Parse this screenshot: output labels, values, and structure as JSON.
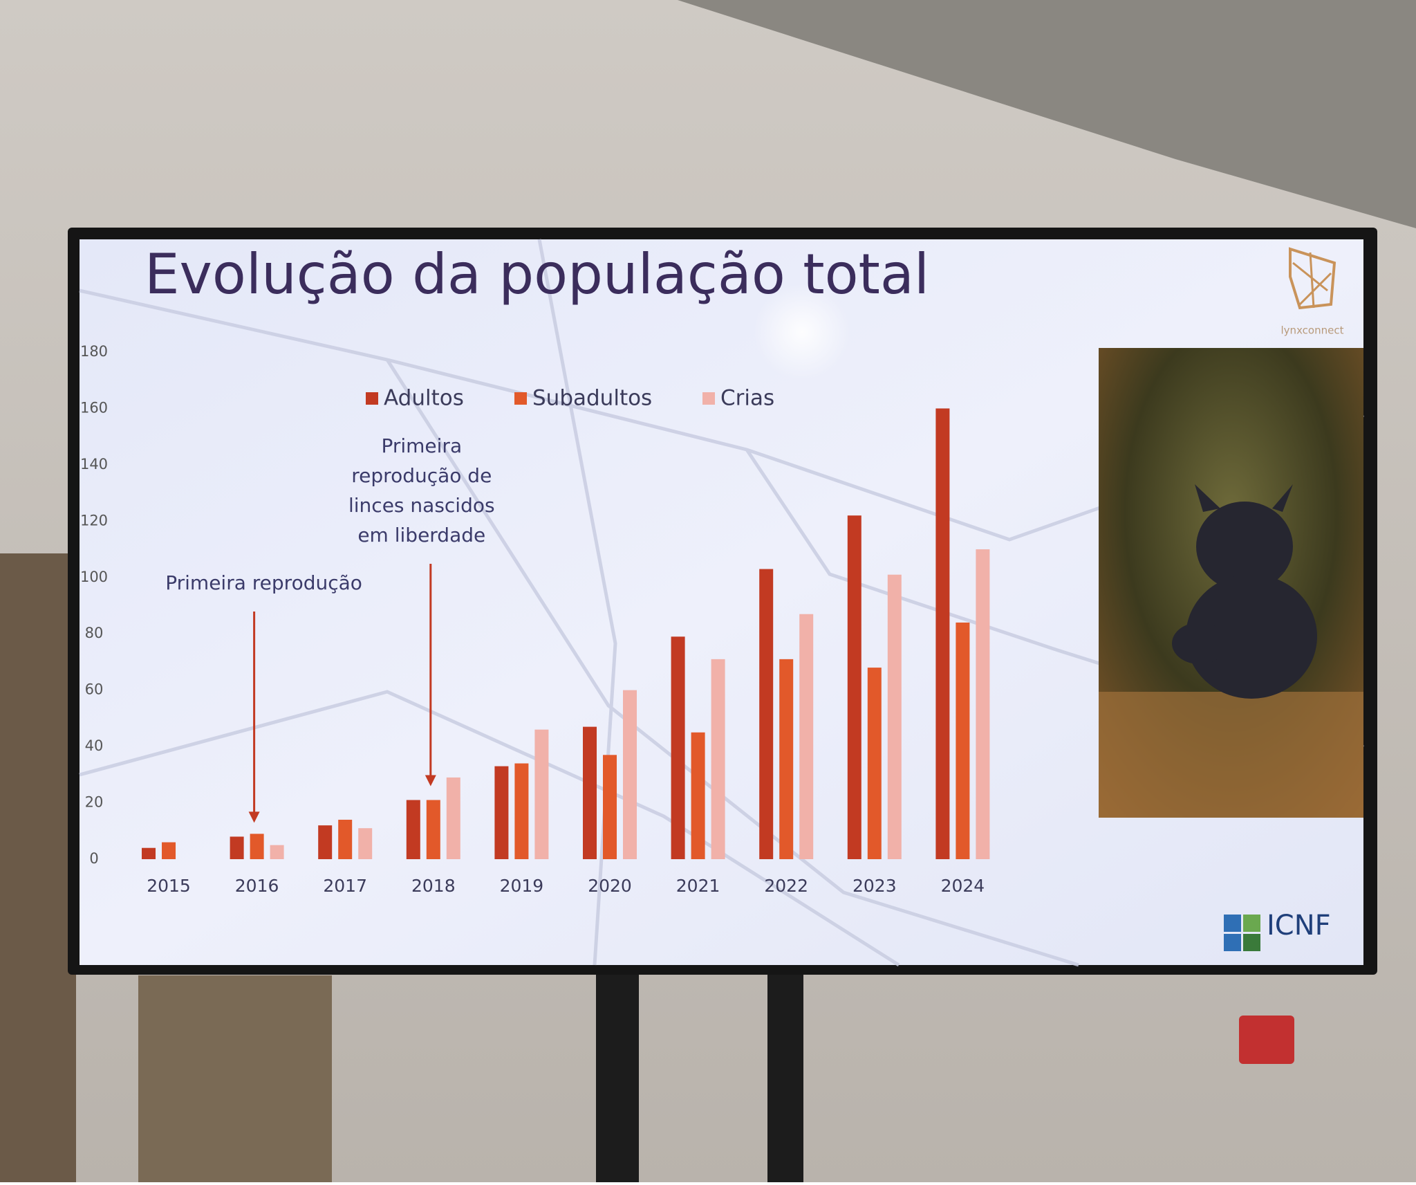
{
  "chart_data": {
    "type": "bar",
    "title": "Evolução da população total",
    "categories": [
      "2015",
      "2016",
      "2017",
      "2018",
      "2019",
      "2020",
      "2021",
      "2022",
      "2023",
      "2024"
    ],
    "series": [
      {
        "name": "Adultos",
        "color": "#c23a22",
        "values": [
          4,
          8,
          12,
          21,
          33,
          47,
          79,
          103,
          122,
          160
        ]
      },
      {
        "name": "Subadultos",
        "color": "#e2592a",
        "values": [
          6,
          9,
          14,
          21,
          34,
          37,
          45,
          71,
          68,
          84
        ]
      },
      {
        "name": "Crias",
        "color": "#f1b1a9",
        "values": [
          null,
          5,
          11,
          29,
          46,
          60,
          71,
          87,
          101,
          110
        ]
      }
    ],
    "ylim": [
      0,
      180
    ],
    "yticks": [
      0,
      20,
      40,
      60,
      80,
      100,
      120,
      140,
      160,
      180
    ],
    "grid": false,
    "legend": "top",
    "annotations": [
      {
        "lines": [
          "Primeira reprodução"
        ],
        "x": "2016"
      },
      {
        "lines": [
          "Primeira",
          "reprodução de",
          "linces nascidos",
          "em liberdade"
        ],
        "x": "2018"
      }
    ]
  },
  "logos": {
    "top": "lynxconnect",
    "bottom": "ICNF"
  }
}
